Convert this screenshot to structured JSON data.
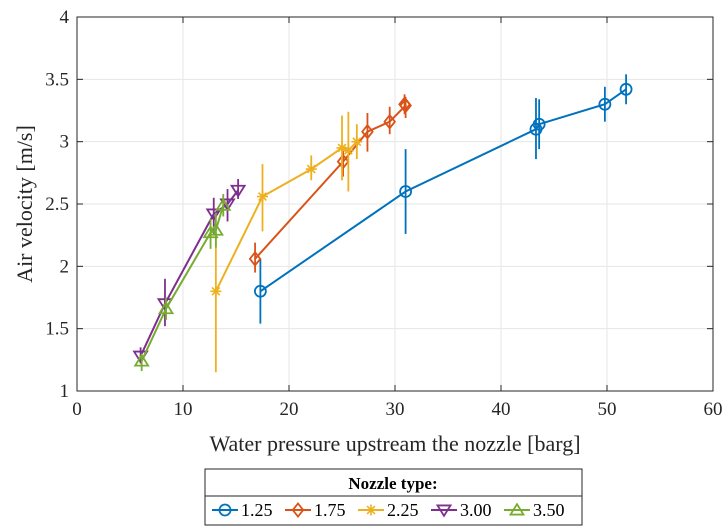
{
  "chart_data": {
    "type": "line",
    "title": "",
    "xlabel": "Water pressure upstream the nozzle [barg]",
    "ylabel": "Air velocity [m/s]",
    "xlim": [
      0,
      60
    ],
    "ylim": [
      1,
      4
    ],
    "xticks": [
      "0",
      "10",
      "20",
      "30",
      "40",
      "50",
      "60"
    ],
    "yticks": [
      "1",
      "1.5",
      "2",
      "2.5",
      "3",
      "3.5",
      "4"
    ],
    "grid": true,
    "legend": {
      "title": "Nozzle type:",
      "placement": "below-center"
    },
    "series": [
      {
        "name": "1.25",
        "color": "#0072BD",
        "marker": "circle",
        "points": [
          {
            "x": 17.3,
            "y": 1.8,
            "err_low": 1.54,
            "err_high": 2.06
          },
          {
            "x": 31.0,
            "y": 2.6,
            "err_low": 2.26,
            "err_high": 2.94
          },
          {
            "x": 43.3,
            "y": 3.1,
            "err_low": 2.86,
            "err_high": 3.35
          },
          {
            "x": 43.6,
            "y": 3.14,
            "err_low": 2.94,
            "err_high": 3.34
          },
          {
            "x": 49.8,
            "y": 3.3,
            "err_low": 3.16,
            "err_high": 3.44
          },
          {
            "x": 51.8,
            "y": 3.42,
            "err_low": 3.3,
            "err_high": 3.54
          }
        ]
      },
      {
        "name": "1.75",
        "color": "#D95319",
        "marker": "diamond",
        "points": [
          {
            "x": 16.8,
            "y": 2.06,
            "err_low": 1.95,
            "err_high": 2.19
          },
          {
            "x": 25.1,
            "y": 2.84,
            "err_low": 2.72,
            "err_high": 2.95
          },
          {
            "x": 27.4,
            "y": 3.08,
            "err_low": 2.92,
            "err_high": 3.23
          },
          {
            "x": 29.5,
            "y": 3.16,
            "err_low": 3.06,
            "err_high": 3.28
          },
          {
            "x": 31.0,
            "y": 3.29,
            "err_low": 3.19,
            "err_high": 3.36
          },
          {
            "x": 30.9,
            "y": 3.3,
            "err_low": 3.22,
            "err_high": 3.38
          }
        ]
      },
      {
        "name": "2.25",
        "color": "#EDB120",
        "marker": "asterisk",
        "points": [
          {
            "x": 13.1,
            "y": 1.8,
            "err_low": 1.15,
            "err_high": 2.28
          },
          {
            "x": 17.5,
            "y": 2.56,
            "err_low": 2.28,
            "err_high": 2.82
          },
          {
            "x": 22.1,
            "y": 2.78,
            "err_low": 2.69,
            "err_high": 2.89
          },
          {
            "x": 25.0,
            "y": 2.95,
            "err_low": 2.69,
            "err_high": 3.21
          },
          {
            "x": 25.6,
            "y": 2.93,
            "err_low": 2.6,
            "err_high": 3.24
          },
          {
            "x": 26.4,
            "y": 3.0,
            "err_low": 2.86,
            "err_high": 3.14
          }
        ]
      },
      {
        "name": "3.00",
        "color": "#7E2F8E",
        "marker": "triangle-down",
        "points": [
          {
            "x": 6.0,
            "y": 1.28,
            "err_low": 1.22,
            "err_high": 1.35
          },
          {
            "x": 8.3,
            "y": 1.7,
            "err_low": 1.52,
            "err_high": 1.9
          },
          {
            "x": 12.9,
            "y": 2.42,
            "err_low": 2.26,
            "err_high": 2.55
          },
          {
            "x": 14.2,
            "y": 2.5,
            "err_low": 2.36,
            "err_high": 2.62
          },
          {
            "x": 15.2,
            "y": 2.61,
            "err_low": 2.54,
            "err_high": 2.7
          }
        ]
      },
      {
        "name": "3.50",
        "color": "#77AC30",
        "marker": "triangle-up",
        "points": [
          {
            "x": 6.1,
            "y": 1.24,
            "err_low": 1.16,
            "err_high": 1.3
          },
          {
            "x": 8.4,
            "y": 1.66,
            "err_low": 1.57,
            "err_high": 1.75
          },
          {
            "x": 12.6,
            "y": 2.27,
            "err_low": 2.14,
            "err_high": 2.38
          },
          {
            "x": 13.1,
            "y": 2.29,
            "err_low": 2.15,
            "err_high": 2.43
          },
          {
            "x": 13.8,
            "y": 2.49,
            "err_low": 2.4,
            "err_high": 2.58
          }
        ]
      }
    ]
  }
}
